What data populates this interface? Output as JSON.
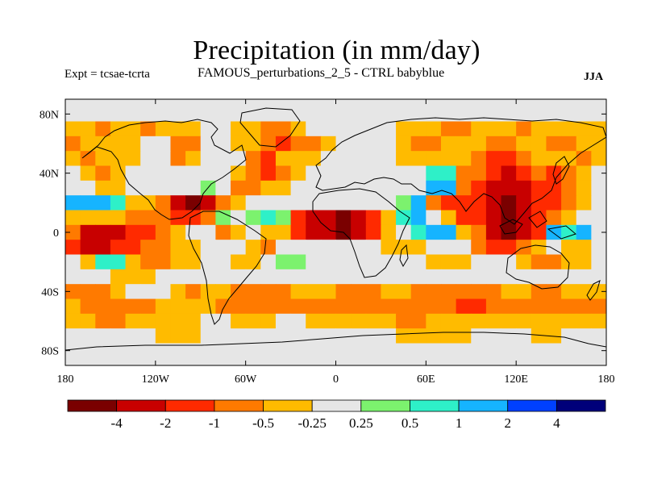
{
  "title": "Precipitation (in mm/day)",
  "subtitle_left": "Expt = tcsae-tcrta",
  "subtitle_center": "FAMOUS_perturbations_2_5 - CTRL babyblue",
  "subtitle_right": "JJA",
  "chart_data": {
    "type": "heatmap",
    "title": "Precipitation (in mm/day)",
    "xlabel": "",
    "ylabel": "",
    "xlim": [
      -180,
      180
    ],
    "ylim": [
      -90,
      90
    ],
    "x_ticks": [
      -180,
      -120,
      -60,
      0,
      60,
      120,
      180
    ],
    "x_tick_labels": [
      "180",
      "120W",
      "60W",
      "0",
      "60E",
      "120E",
      "180"
    ],
    "y_ticks": [
      80,
      40,
      0,
      -40,
      -80
    ],
    "y_tick_labels": [
      "80N",
      "40N",
      "0",
      "40S",
      "80S"
    ],
    "colorbar": {
      "orientation": "horizontal",
      "levels": [
        "-4",
        "-2",
        "-1",
        "-0.5",
        "-0.25",
        "0.25",
        "0.5",
        "1",
        "2",
        "4"
      ],
      "colors": [
        "#7a0000",
        "#c80000",
        "#ff2a00",
        "#ff7a00",
        "#ffbb00",
        "#e6e6e6",
        "#7cf26e",
        "#2ef0c8",
        "#16b4ff",
        "#0040ff",
        "#00007a"
      ]
    },
    "note_grid": "coarse lat-lon field of precipitation difference, each cell value is a class index 0..10 into colorbar.colors",
    "lon_step": 10,
    "lat_step": 10,
    "lat_rows_north_to_south": [
      80,
      70,
      60,
      50,
      40,
      30,
      20,
      10,
      0,
      -10,
      -20,
      -30,
      -40,
      -50,
      -60,
      -70,
      -80
    ],
    "field": [
      [
        5,
        5,
        5,
        5,
        5,
        5,
        5,
        5,
        5,
        5,
        5,
        5,
        5,
        5,
        5,
        5,
        5,
        5,
        5,
        5,
        5,
        5,
        5,
        5,
        5,
        5,
        5,
        5,
        5,
        5,
        5,
        5,
        5,
        5,
        5,
        5
      ],
      [
        4,
        4,
        3,
        4,
        4,
        3,
        4,
        4,
        4,
        5,
        5,
        4,
        4,
        3,
        3,
        4,
        5,
        5,
        5,
        5,
        5,
        5,
        4,
        4,
        4,
        3,
        3,
        4,
        4,
        4,
        3,
        4,
        4,
        4,
        4,
        4
      ],
      [
        3,
        4,
        4,
        4,
        4,
        5,
        5,
        3,
        3,
        5,
        5,
        4,
        4,
        3,
        2,
        3,
        3,
        4,
        5,
        5,
        5,
        5,
        4,
        3,
        3,
        4,
        4,
        4,
        3,
        3,
        4,
        4,
        3,
        3,
        4,
        4
      ],
      [
        4,
        3,
        4,
        4,
        4,
        5,
        5,
        3,
        4,
        5,
        5,
        5,
        3,
        2,
        4,
        4,
        4,
        5,
        5,
        5,
        5,
        5,
        4,
        4,
        4,
        4,
        4,
        3,
        2,
        2,
        3,
        4,
        4,
        4,
        3,
        4
      ],
      [
        5,
        4,
        3,
        4,
        5,
        5,
        5,
        5,
        5,
        5,
        5,
        4,
        3,
        2,
        3,
        4,
        5,
        5,
        5,
        5,
        5,
        5,
        5,
        5,
        7,
        7,
        3,
        3,
        2,
        1,
        2,
        3,
        2,
        3,
        4,
        5
      ],
      [
        5,
        5,
        4,
        4,
        5,
        5,
        5,
        5,
        5,
        6,
        5,
        3,
        3,
        4,
        4,
        5,
        5,
        5,
        5,
        5,
        5,
        5,
        5,
        5,
        8,
        8,
        3,
        2,
        1,
        1,
        1,
        2,
        2,
        3,
        4,
        5
      ],
      [
        8,
        8,
        8,
        7,
        4,
        4,
        3,
        1,
        0,
        1,
        3,
        4,
        5,
        5,
        5,
        5,
        5,
        5,
        5,
        5,
        5,
        5,
        6,
        8,
        3,
        2,
        2,
        2,
        1,
        0,
        1,
        2,
        2,
        3,
        4,
        5
      ],
      [
        4,
        4,
        4,
        4,
        3,
        3,
        3,
        2,
        2,
        3,
        6,
        5,
        6,
        7,
        6,
        2,
        1,
        1,
        0,
        1,
        2,
        4,
        7,
        8,
        5,
        4,
        2,
        2,
        1,
        0,
        1,
        2,
        3,
        4,
        5,
        5
      ],
      [
        3,
        1,
        1,
        1,
        2,
        2,
        3,
        4,
        5,
        5,
        3,
        4,
        5,
        4,
        4,
        2,
        1,
        1,
        0,
        1,
        2,
        4,
        5,
        7,
        8,
        8,
        4,
        3,
        1,
        0,
        1,
        2,
        8,
        7,
        8,
        5
      ],
      [
        2,
        1,
        1,
        2,
        2,
        3,
        3,
        4,
        4,
        5,
        5,
        5,
        4,
        3,
        5,
        5,
        5,
        5,
        5,
        5,
        5,
        4,
        4,
        4,
        5,
        5,
        5,
        3,
        2,
        2,
        3,
        4,
        5,
        4,
        4,
        5
      ],
      [
        5,
        4,
        7,
        7,
        4,
        3,
        3,
        4,
        4,
        5,
        5,
        4,
        4,
        5,
        6,
        6,
        5,
        5,
        5,
        5,
        5,
        5,
        5,
        5,
        4,
        4,
        4,
        5,
        5,
        5,
        4,
        3,
        3,
        4,
        4,
        5
      ],
      [
        5,
        5,
        5,
        4,
        4,
        4,
        5,
        5,
        5,
        5,
        5,
        5,
        5,
        5,
        5,
        5,
        5,
        5,
        5,
        5,
        5,
        5,
        5,
        5,
        5,
        5,
        5,
        5,
        5,
        5,
        5,
        5,
        5,
        5,
        5,
        5
      ],
      [
        3,
        3,
        3,
        4,
        5,
        5,
        5,
        4,
        3,
        4,
        4,
        3,
        3,
        3,
        3,
        4,
        4,
        4,
        3,
        3,
        3,
        4,
        4,
        3,
        3,
        3,
        3,
        3,
        3,
        4,
        4,
        3,
        3,
        4,
        4,
        4
      ],
      [
        4,
        3,
        3,
        3,
        3,
        3,
        4,
        4,
        4,
        4,
        3,
        3,
        3,
        3,
        3,
        3,
        3,
        3,
        3,
        3,
        3,
        3,
        3,
        3,
        3,
        3,
        2,
        2,
        3,
        3,
        3,
        3,
        3,
        3,
        3,
        3
      ],
      [
        4,
        4,
        3,
        3,
        4,
        4,
        4,
        4,
        4,
        5,
        5,
        4,
        4,
        4,
        5,
        5,
        4,
        4,
        4,
        4,
        4,
        4,
        3,
        3,
        4,
        4,
        4,
        4,
        4,
        4,
        4,
        4,
        4,
        4,
        4,
        4
      ],
      [
        5,
        5,
        5,
        5,
        5,
        5,
        4,
        4,
        4,
        5,
        5,
        5,
        5,
        5,
        5,
        5,
        5,
        5,
        5,
        5,
        5,
        5,
        4,
        4,
        4,
        4,
        4,
        5,
        5,
        5,
        5,
        4,
        4,
        5,
        5,
        5
      ],
      [
        5,
        5,
        5,
        5,
        5,
        5,
        5,
        5,
        5,
        5,
        5,
        5,
        5,
        5,
        5,
        5,
        5,
        5,
        5,
        5,
        5,
        5,
        5,
        5,
        5,
        5,
        5,
        5,
        5,
        5,
        5,
        5,
        5,
        5,
        5,
        5
      ]
    ]
  }
}
